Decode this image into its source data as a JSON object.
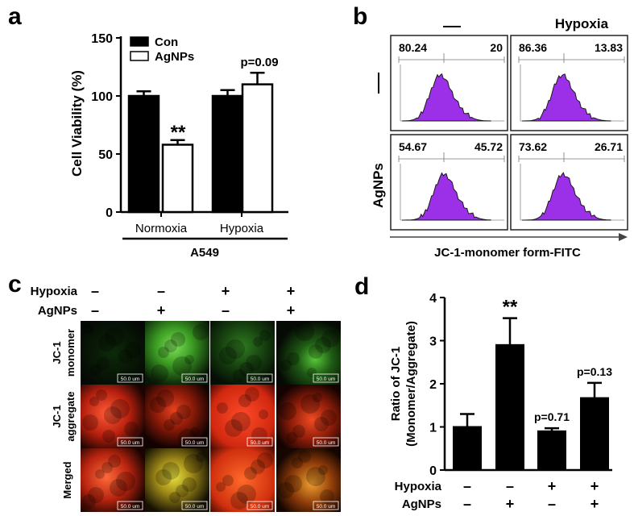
{
  "panel_labels": {
    "a": "a",
    "b": "b",
    "c": "c",
    "d": "d"
  },
  "panel_a": {
    "ylabel": "Cell Viability (%)",
    "legend": [
      "Con",
      "AgNPs"
    ],
    "group_axis_label": "A549",
    "annotations": {
      "significance": "**",
      "pvalue": "p=0.09"
    }
  },
  "panel_b": {
    "col_headers": [
      "—",
      "Hypoxia"
    ],
    "row_headers": [
      "—",
      "AgNPs"
    ],
    "xlabel": "JC-1-monomer form-FITC",
    "histogram_color": "#9b30e8",
    "cells": [
      {
        "left": "80.24",
        "right": "20"
      },
      {
        "left": "86.36",
        "right": "13.83"
      },
      {
        "left": "54.67",
        "right": "45.72"
      },
      {
        "left": "73.62",
        "right": "26.71"
      }
    ]
  },
  "panel_c": {
    "condition_labels": [
      "Hypoxia",
      "AgNPs"
    ],
    "hypoxia_signs": [
      "–",
      "–",
      "+",
      "+"
    ],
    "agnps_signs": [
      "–",
      "+",
      "–",
      "+"
    ],
    "row_labels": [
      [
        "JC-1",
        "monomer"
      ],
      [
        "JC-1",
        "aggregate"
      ],
      [
        "Merged",
        ""
      ]
    ],
    "scale_bar_label": "50.0 um"
  },
  "panel_d": {
    "ylabel_line1": "Ratio of JC-1",
    "ylabel_line2": "(Monomer/Aggregate)",
    "condition_labels": [
      "Hypoxia",
      "AgNPs"
    ],
    "hypoxia_signs": [
      "–",
      "–",
      "+",
      "+"
    ],
    "agnps_signs": [
      "–",
      "+",
      "–",
      "+"
    ],
    "annotations": [
      "",
      "**",
      "p=0.71",
      "p=0.13"
    ]
  },
  "chart_data": [
    {
      "type": "bar",
      "panel": "a",
      "categories": [
        "Normoxia",
        "Hypoxia"
      ],
      "series": [
        {
          "name": "Con",
          "values": [
            100,
            100
          ],
          "errors": [
            4,
            5
          ],
          "color": "#000000"
        },
        {
          "name": "AgNPs",
          "values": [
            58,
            110
          ],
          "errors": [
            4,
            10
          ],
          "color": "#ffffff"
        }
      ],
      "ylabel": "Cell Viability (%)",
      "xlabel": "A549",
      "ylim": [
        0,
        150
      ],
      "yticks": [
        0,
        50,
        100,
        150
      ]
    },
    {
      "type": "bar",
      "panel": "d",
      "categories": [
        "1",
        "2",
        "3",
        "4"
      ],
      "values": [
        1.0,
        2.9,
        0.9,
        1.67
      ],
      "errors": [
        0.3,
        0.62,
        0.07,
        0.35
      ],
      "ylabel": "Ratio of JC-1 (Monomer/Aggregate)",
      "ylim": [
        0,
        4
      ],
      "yticks": [
        0,
        1,
        2,
        3,
        4
      ]
    }
  ]
}
